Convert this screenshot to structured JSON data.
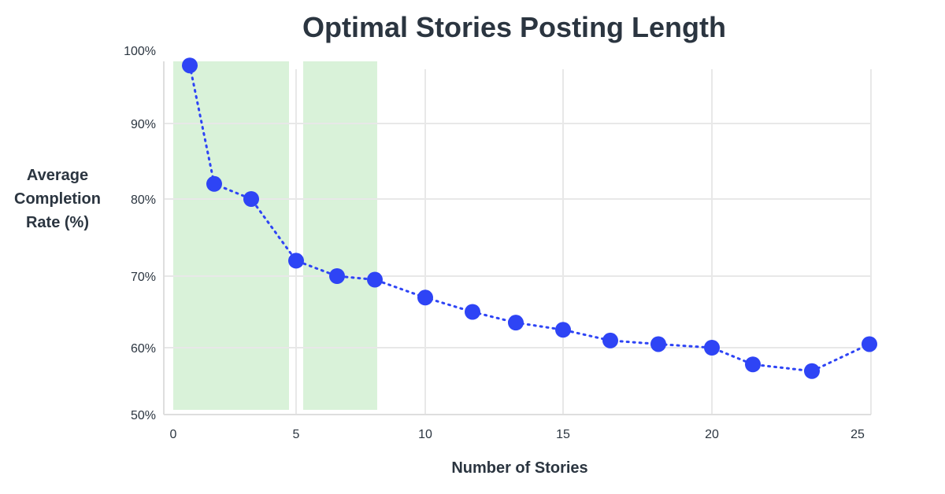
{
  "chart_data": {
    "type": "line",
    "title": "Optimal Stories Posting Length",
    "xlabel": "Number of Stories",
    "ylabel": "Average Completion Rate (%)",
    "ylabel_lines": [
      "Average",
      "Completion",
      "Rate (%)"
    ],
    "xlim": [
      0,
      25
    ],
    "ylim": [
      50,
      100
    ],
    "grid": true,
    "x_ticks": [
      "0",
      "5",
      "10",
      "15",
      "20",
      "25"
    ],
    "y_ticks": [
      "100%",
      "90%",
      "80%",
      "70%",
      "60%",
      "50%"
    ],
    "series": [
      {
        "name": "Average Completion Rate",
        "color": "#2e44f5",
        "line_style": "dotted",
        "x": [
          1,
          2,
          3,
          5,
          6,
          7,
          10,
          11,
          12,
          15,
          16,
          17,
          20,
          21,
          23,
          25
        ],
        "values": [
          99,
          82,
          80,
          72,
          70,
          69.5,
          67,
          65,
          63.5,
          62.5,
          61,
          60.5,
          60,
          57.5,
          56.5,
          60.5
        ]
      }
    ],
    "highlight_regions": [
      {
        "x_start": 0,
        "x_end": 4.5,
        "color": "#d9f2d9"
      },
      {
        "x_start": 5.2,
        "x_end": 8,
        "color": "#d9f2d9"
      }
    ]
  },
  "colors": {
    "point": "#2e44f5",
    "highlight": "#d9f2d9",
    "grid": "#e8e8e8",
    "text": "#2b3540"
  }
}
